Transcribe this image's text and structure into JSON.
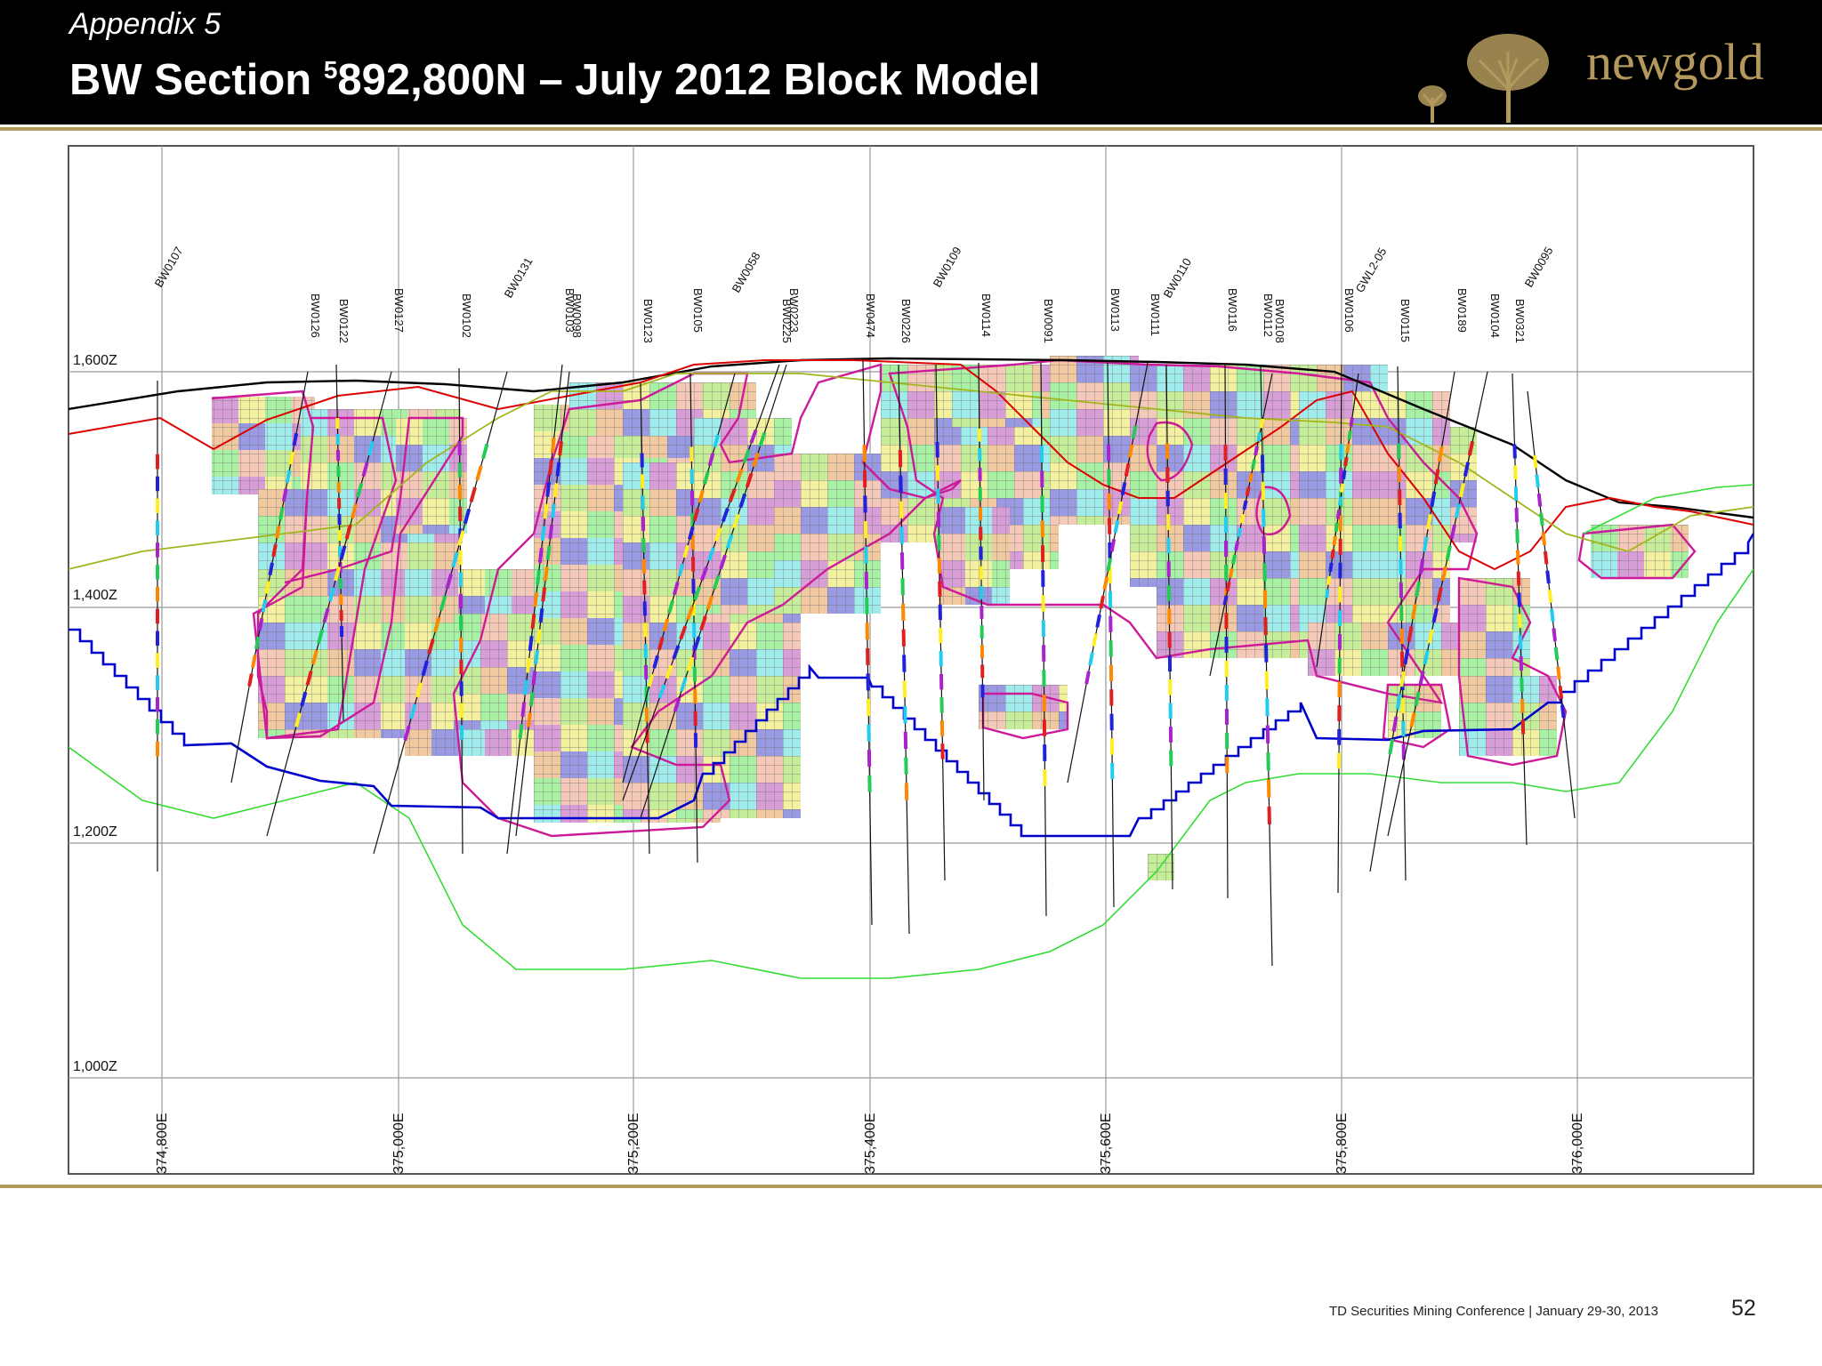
{
  "header": {
    "subtitle": "Appendix 5",
    "title_pre": "BW Section ",
    "title_sup": "5",
    "title_post": "892,800N – July 2012 Block Model",
    "logo_text": "newgold"
  },
  "colors": {
    "header_bg": "#000000",
    "gold": "#b39a5c",
    "topography": "#000000",
    "pit_shell": "#dd0000",
    "underground": "#0000cc",
    "envelope": "#cc1a99",
    "green_line": "#33dd33",
    "olive_line": "#a4b41c"
  },
  "axes": {
    "elevation_labels": [
      "1,600Z",
      "1,400Z",
      "1,200Z",
      "1,000Z"
    ],
    "easting_labels": [
      "374,800E",
      "375,000E",
      "375,200E",
      "375,400E",
      "375,600E",
      "375,800E",
      "376,000E"
    ]
  },
  "drillholes": [
    "BW0107",
    "BW0126",
    "BW0122",
    "BW0127",
    "BW0102",
    "BW0131",
    "BW0103",
    "BW0098",
    "BW0123",
    "BW0105",
    "BW0058",
    "BW0225",
    "BW0223",
    "BW0474",
    "BW0226",
    "BW0109",
    "BW0114",
    "BW0091",
    "BW0113",
    "BW0111",
    "BW0110",
    "BW0116",
    "BW0112",
    "BW0108",
    "BW0106",
    "GWL2-05",
    "BW0115",
    "BW0189",
    "BW0104",
    "BW0321",
    "BW0095"
  ],
  "footer": {
    "conference": "TD Securities Mining Conference  |  January 29-30, 2013",
    "page": "52"
  }
}
